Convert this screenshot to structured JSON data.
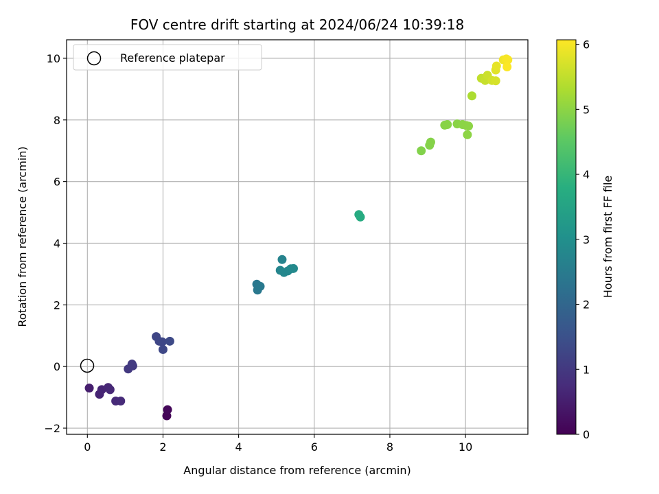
{
  "chart_data": {
    "type": "scatter",
    "title": "FOV centre drift starting at 2024/06/24 10:39:18",
    "xlabel": "Angular distance from reference (arcmin)",
    "ylabel": "Rotation from reference (arcmin)",
    "xlim": [
      -0.55,
      11.65
    ],
    "ylim": [
      -2.2,
      10.6
    ],
    "xticks": [
      "0",
      "2",
      "4",
      "6",
      "8",
      "10"
    ],
    "yticks": [
      "−2",
      "0",
      "2",
      "4",
      "6",
      "8",
      "10"
    ],
    "grid": true,
    "legend": {
      "placement": "top-left",
      "entries": [
        "Reference platepar"
      ]
    },
    "reference_point": {
      "x": 0,
      "y": 0
    },
    "colorbar": {
      "label": "Hours from first FF file",
      "range": [
        0,
        6.07
      ],
      "ticks": [
        "0",
        "1",
        "2",
        "3",
        "4",
        "5",
        "6"
      ],
      "colormap": "viridis"
    },
    "points": [
      {
        "x": 2.1,
        "y": -1.6,
        "c": 0.05
      },
      {
        "x": 2.12,
        "y": -1.4,
        "c": 0.1
      },
      {
        "x": 0.05,
        "y": -0.7,
        "c": 0.5
      },
      {
        "x": 0.32,
        "y": -0.9,
        "c": 0.6
      },
      {
        "x": 0.38,
        "y": -0.75,
        "c": 0.62
      },
      {
        "x": 0.55,
        "y": -0.68,
        "c": 0.65
      },
      {
        "x": 0.6,
        "y": -0.75,
        "c": 0.67
      },
      {
        "x": 0.75,
        "y": -1.12,
        "c": 0.7
      },
      {
        "x": 0.88,
        "y": -1.12,
        "c": 0.72
      },
      {
        "x": 1.08,
        "y": -0.08,
        "c": 1.0
      },
      {
        "x": 1.2,
        "y": 0.02,
        "c": 1.02
      },
      {
        "x": 1.18,
        "y": 0.08,
        "c": 1.04
      },
      {
        "x": 1.82,
        "y": 0.97,
        "c": 1.25
      },
      {
        "x": 1.9,
        "y": 0.82,
        "c": 1.28
      },
      {
        "x": 1.98,
        "y": 0.8,
        "c": 1.3
      },
      {
        "x": 2.0,
        "y": 0.55,
        "c": 1.3
      },
      {
        "x": 2.18,
        "y": 0.82,
        "c": 1.35
      },
      {
        "x": 4.48,
        "y": 2.67,
        "c": 2.4
      },
      {
        "x": 4.5,
        "y": 2.48,
        "c": 2.42
      },
      {
        "x": 4.57,
        "y": 2.6,
        "c": 2.45
      },
      {
        "x": 5.15,
        "y": 3.47,
        "c": 2.7
      },
      {
        "x": 5.1,
        "y": 3.12,
        "c": 2.75
      },
      {
        "x": 5.2,
        "y": 3.05,
        "c": 2.78
      },
      {
        "x": 5.3,
        "y": 3.1,
        "c": 2.8
      },
      {
        "x": 5.38,
        "y": 3.17,
        "c": 2.82
      },
      {
        "x": 5.45,
        "y": 3.18,
        "c": 2.85
      },
      {
        "x": 7.18,
        "y": 4.93,
        "c": 3.7
      },
      {
        "x": 7.22,
        "y": 4.85,
        "c": 3.72
      },
      {
        "x": 8.83,
        "y": 7.0,
        "c": 4.9
      },
      {
        "x": 9.05,
        "y": 7.18,
        "c": 4.92
      },
      {
        "x": 9.08,
        "y": 7.28,
        "c": 4.93
      },
      {
        "x": 9.45,
        "y": 7.83,
        "c": 4.95
      },
      {
        "x": 9.52,
        "y": 7.85,
        "c": 4.96
      },
      {
        "x": 9.78,
        "y": 7.87,
        "c": 4.97
      },
      {
        "x": 9.92,
        "y": 7.85,
        "c": 4.98
      },
      {
        "x": 10.02,
        "y": 7.82,
        "c": 4.99
      },
      {
        "x": 10.08,
        "y": 7.8,
        "c": 5.0
      },
      {
        "x": 10.05,
        "y": 7.52,
        "c": 5.0
      },
      {
        "x": 10.17,
        "y": 8.78,
        "c": 5.3
      },
      {
        "x": 10.42,
        "y": 9.35,
        "c": 5.5
      },
      {
        "x": 10.52,
        "y": 9.28,
        "c": 5.55
      },
      {
        "x": 10.58,
        "y": 9.45,
        "c": 5.6
      },
      {
        "x": 10.7,
        "y": 9.28,
        "c": 5.65
      },
      {
        "x": 10.8,
        "y": 9.27,
        "c": 5.7
      },
      {
        "x": 10.8,
        "y": 9.62,
        "c": 5.8
      },
      {
        "x": 10.82,
        "y": 9.75,
        "c": 5.85
      },
      {
        "x": 11.0,
        "y": 9.95,
        "c": 5.95
      },
      {
        "x": 11.08,
        "y": 9.98,
        "c": 6.0
      },
      {
        "x": 11.12,
        "y": 9.95,
        "c": 6.02
      },
      {
        "x": 11.1,
        "y": 9.72,
        "c": 6.05
      }
    ]
  }
}
